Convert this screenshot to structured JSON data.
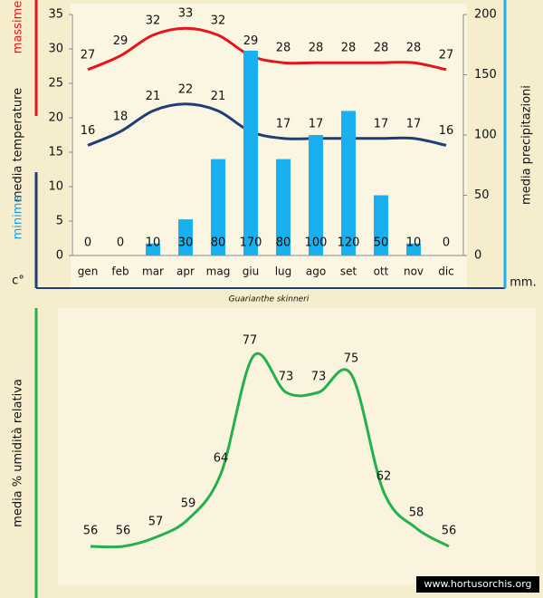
{
  "chart_data": [
    {
      "type": "combo",
      "title": "Guarianthe skinneri",
      "categories": [
        "gen",
        "feb",
        "mar",
        "apr",
        "mag",
        "giu",
        "lug",
        "ago",
        "set",
        "ott",
        "nov",
        "dic"
      ],
      "series": [
        {
          "name": "massime",
          "type": "line",
          "color": "#e8141c",
          "values": [
            27,
            29,
            32,
            33,
            32,
            29,
            28,
            28,
            28,
            28,
            28,
            27
          ]
        },
        {
          "name": "minime",
          "type": "line",
          "color": "#1f3e78",
          "values": [
            16,
            18,
            21,
            22,
            21,
            18,
            17,
            17,
            17,
            17,
            17,
            16
          ]
        },
        {
          "type": "bar",
          "axis": "y2",
          "color": "#1ab0ef",
          "values": [
            0,
            0,
            10,
            30,
            80,
            170,
            80,
            100,
            120,
            50,
            10,
            0
          ]
        }
      ],
      "ylabel": "media temperature",
      "yunit": "c°",
      "y2label": "media precipitazioni",
      "y2unit": "mm.",
      "ylim": [
        0,
        35
      ],
      "yticks": [
        0,
        5,
        10,
        15,
        20,
        25,
        30,
        35
      ],
      "y2lim": [
        0,
        200
      ],
      "y2ticks": [
        0,
        50,
        100,
        150,
        200
      ]
    },
    {
      "type": "line",
      "ylabel": "media % umidità relativa",
      "color": "#22b14c",
      "values": [
        56,
        56,
        57,
        59,
        64,
        77,
        73,
        73,
        75,
        62,
        58,
        56
      ]
    }
  ],
  "watermark": "www.hortusorchis.org"
}
